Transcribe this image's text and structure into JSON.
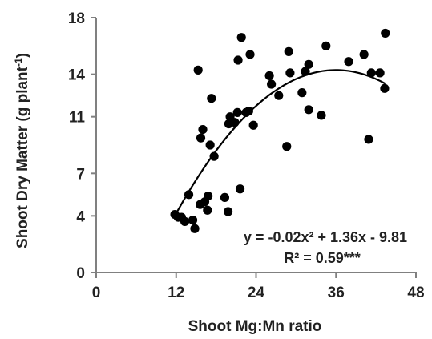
{
  "chart_data": {
    "type": "scatter",
    "title": "",
    "xlabel": "Shoot Mg:Mn ratio",
    "ylabel": {
      "main": "Shoot Dry Matter (g plant",
      "sup": "-1",
      "close": ")"
    },
    "xlim": [
      0,
      48
    ],
    "ylim": [
      0,
      18
    ],
    "xticks": [
      0,
      12,
      24,
      36,
      48
    ],
    "yticks": [
      0,
      4,
      7,
      11,
      14,
      18
    ],
    "grid": false,
    "legend": "none",
    "marker_color": "#000000",
    "points": [
      [
        11.8,
        4.1
      ],
      [
        12.3,
        3.9
      ],
      [
        12.8,
        3.9
      ],
      [
        13.3,
        3.6
      ],
      [
        13.9,
        5.5
      ],
      [
        14.5,
        3.7
      ],
      [
        14.8,
        3.1
      ],
      [
        15.3,
        14.3
      ],
      [
        15.6,
        4.8
      ],
      [
        15.7,
        9.5
      ],
      [
        16.0,
        10.1
      ],
      [
        16.3,
        5.0
      ],
      [
        16.7,
        4.4
      ],
      [
        16.8,
        5.4
      ],
      [
        17.1,
        9.0
      ],
      [
        17.3,
        12.3
      ],
      [
        17.7,
        8.2
      ],
      [
        19.3,
        5.3
      ],
      [
        19.8,
        4.3
      ],
      [
        19.9,
        10.5
      ],
      [
        20.1,
        11.0
      ],
      [
        20.8,
        10.6
      ],
      [
        21.2,
        11.3
      ],
      [
        21.3,
        15.0
      ],
      [
        21.6,
        5.9
      ],
      [
        21.8,
        16.6
      ],
      [
        22.5,
        11.3
      ],
      [
        22.9,
        11.4
      ],
      [
        23.1,
        15.4
      ],
      [
        23.6,
        10.4
      ],
      [
        26.0,
        13.9
      ],
      [
        26.3,
        13.3
      ],
      [
        27.4,
        12.5
      ],
      [
        28.6,
        8.9
      ],
      [
        28.9,
        15.6
      ],
      [
        29.1,
        14.1
      ],
      [
        30.9,
        12.7
      ],
      [
        31.4,
        14.2
      ],
      [
        31.9,
        14.7
      ],
      [
        31.9,
        11.5
      ],
      [
        33.8,
        11.1
      ],
      [
        34.5,
        16.0
      ],
      [
        37.9,
        14.9
      ],
      [
        40.2,
        15.4
      ],
      [
        40.9,
        9.4
      ],
      [
        41.3,
        14.1
      ],
      [
        42.6,
        14.1
      ],
      [
        43.3,
        13.0
      ],
      [
        43.4,
        16.9
      ]
    ],
    "trendline": {
      "type": "quadratic",
      "coefficients": {
        "a": -0.02,
        "b": 1.36,
        "c": -9.81
      },
      "x_range": [
        11.8,
        43.4
      ]
    },
    "annotations": {
      "equation": "y = -0.02x² + 1.36x - 9.81",
      "r2": "R² = 0.59***"
    }
  }
}
